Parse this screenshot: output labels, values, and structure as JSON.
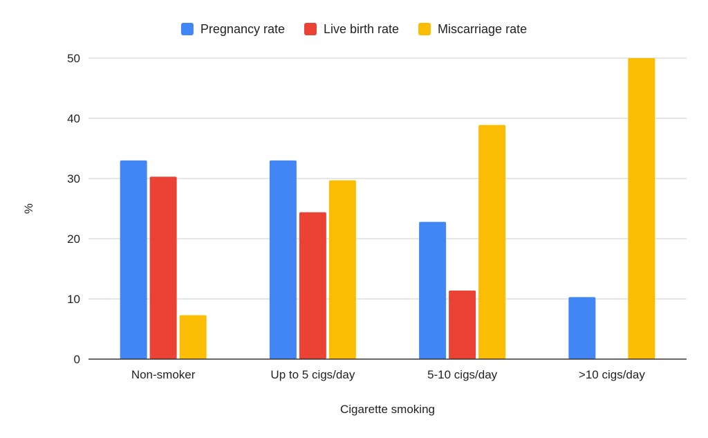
{
  "chart_data": {
    "type": "bar",
    "categories": [
      "Non-smoker",
      "Up to 5 cigs/day",
      "5-10 cigs/day",
      ">10 cigs/day"
    ],
    "series": [
      {
        "name": "Pregnancy rate",
        "color": "#4285f4",
        "values": [
          33,
          33,
          22.8,
          10.3
        ]
      },
      {
        "name": "Live birth rate",
        "color": "#ea4335",
        "values": [
          30.3,
          24.4,
          11.4,
          0
        ]
      },
      {
        "name": "Miscarriage rate",
        "color": "#fbbc04",
        "values": [
          7.3,
          29.7,
          38.9,
          50
        ]
      }
    ],
    "xlabel": "Cigarette smoking",
    "ylabel": "%",
    "ylim": [
      0,
      50
    ],
    "yticks": [
      0,
      10,
      20,
      30,
      40,
      50
    ],
    "grid": true,
    "legend_position": "top"
  }
}
